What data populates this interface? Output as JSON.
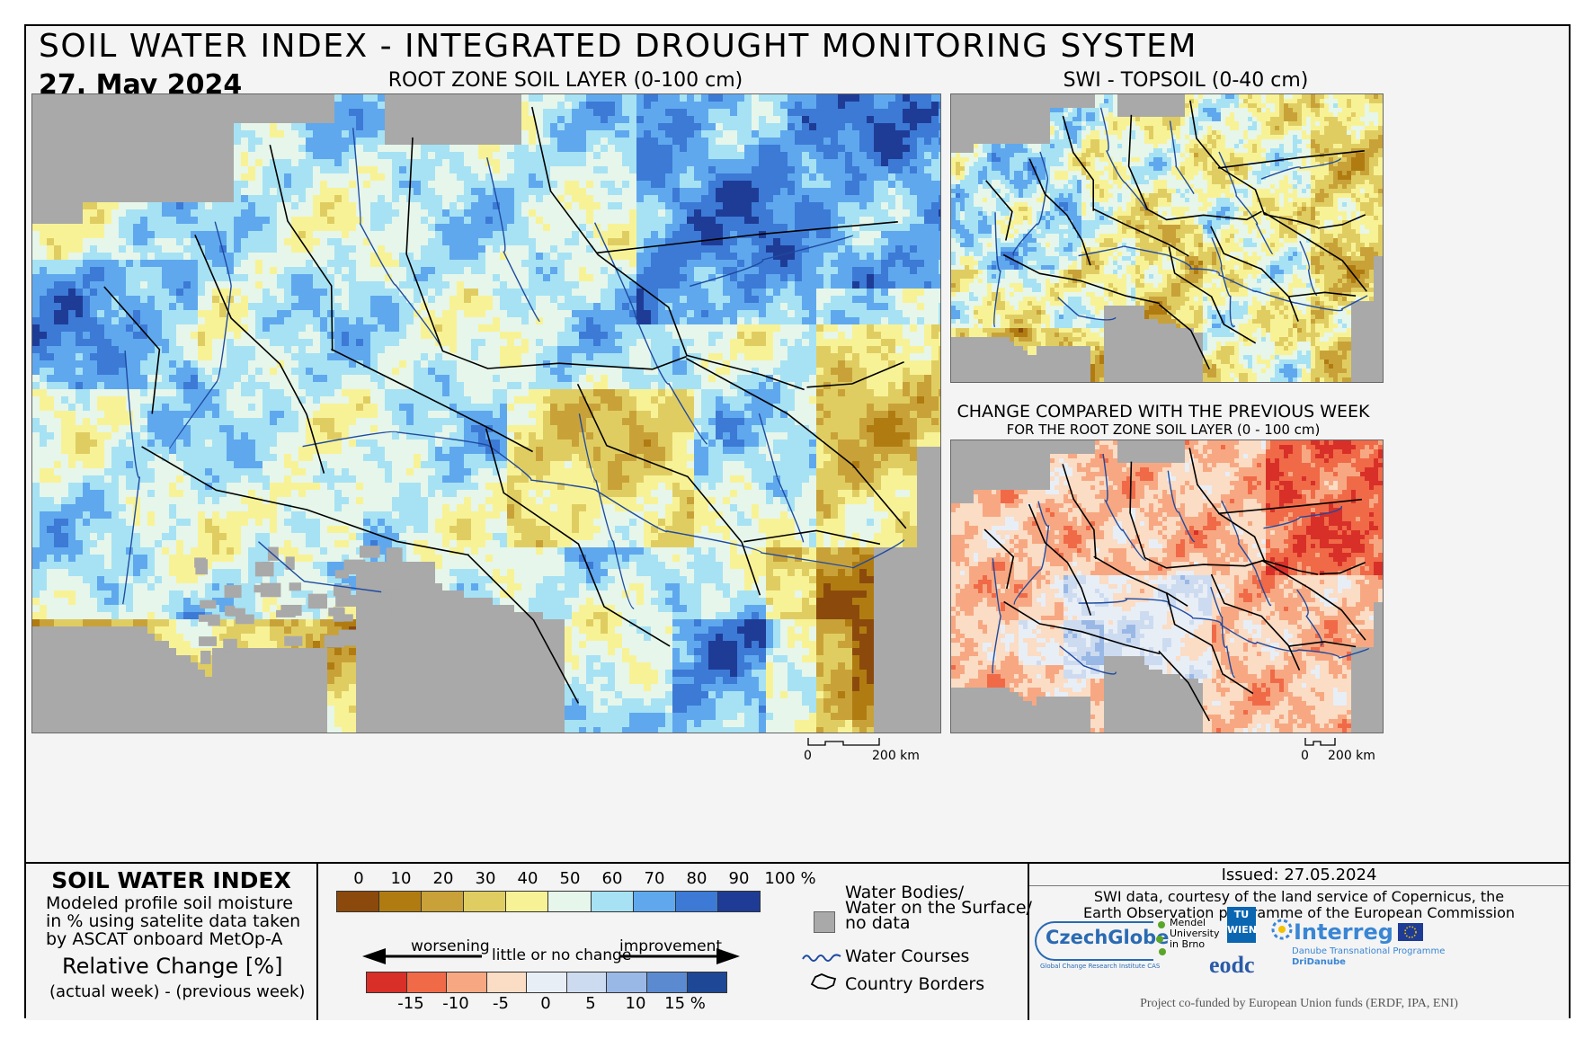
{
  "header": {
    "title": "SOIL WATER INDEX - INTEGRATED DROUGHT MONITORING SYSTEM",
    "date": "27. May 2024"
  },
  "maps": {
    "main_title": "ROOT ZONE SOIL LAYER (0-100 cm)",
    "topsoil_title": "SWI - TOPSOIL (0-40 cm)",
    "change_title": "CHANGE COMPARED WITH THE PREVIOUS WEEK",
    "change_subtitle": "FOR THE ROOT ZONE SOIL LAYER (0 - 100 cm)",
    "scale_main": {
      "zero": "0",
      "dist": "200 km"
    },
    "scale_change": {
      "zero": "0",
      "dist": "200 km"
    }
  },
  "legend": {
    "swi_title": "SOIL WATER INDEX",
    "swi_desc_lines": [
      "Modeled profile soil moisture",
      "in % using satelite data taken",
      "by ASCAT onboard MetOp-A"
    ],
    "rel_title": "Relative Change [%]",
    "rel_desc": "(actual week) - (previous week)",
    "swi_ticks": [
      "0",
      "10",
      "20",
      "30",
      "40",
      "50",
      "60",
      "70",
      "80",
      "90",
      "100 %"
    ],
    "swi_colors": [
      "#8b4a0c",
      "#b07c12",
      "#c8a238",
      "#e0cd62",
      "#f8f296",
      "#e6f6ea",
      "#a6e2f4",
      "#5fa8ee",
      "#3c7ad6",
      "#1e3c96"
    ],
    "change_labels": {
      "worse": "worsening",
      "little": "little or no change",
      "better": "improvement"
    },
    "change_ticks": [
      "-15",
      "-10",
      "-5",
      "0",
      "5",
      "10",
      "15 %"
    ],
    "change_colors": [
      "#d83028",
      "#f06a48",
      "#f7a882",
      "#fbdcc4",
      "#e8eef6",
      "#cddbf0",
      "#9ab8e6",
      "#5b8ad0",
      "#1e4896"
    ],
    "symbols": {
      "water_bodies": "Water Bodies/\nWater on the Surface/\nno data",
      "water_courses": "Water Courses",
      "country_borders": "Country Borders"
    },
    "issued": "Issued: 27.05.2024",
    "credit_lines": [
      "SWI data, courtesy of the land service of Copernicus, the",
      "Earth Observation programme of the European Commission"
    ],
    "logos": {
      "czechglobe": "CzechGlobe",
      "czechglobe_sub": "Global Change Research Institute CAS",
      "mendel": "Mendel\nUniversity\nin Brno",
      "tuwien": "TU\nWIEN",
      "eodc": "eodc",
      "interreg": "Interreg",
      "interreg_sub1": "Danube Transnational Programme",
      "interreg_sub2": "DriDanube"
    },
    "cofunded": "Project co-funded by European Union funds (ERDF, IPA, ENI)"
  },
  "colors": {
    "swi_palette": [
      "#8b4a0c",
      "#b07c12",
      "#c8a238",
      "#e0cd62",
      "#f8f296",
      "#e6f6ea",
      "#a6e2f4",
      "#5fa8ee",
      "#3c7ad6",
      "#1e3c96"
    ],
    "no_data": "#a9a9a9",
    "river": "#1f4aa0"
  }
}
